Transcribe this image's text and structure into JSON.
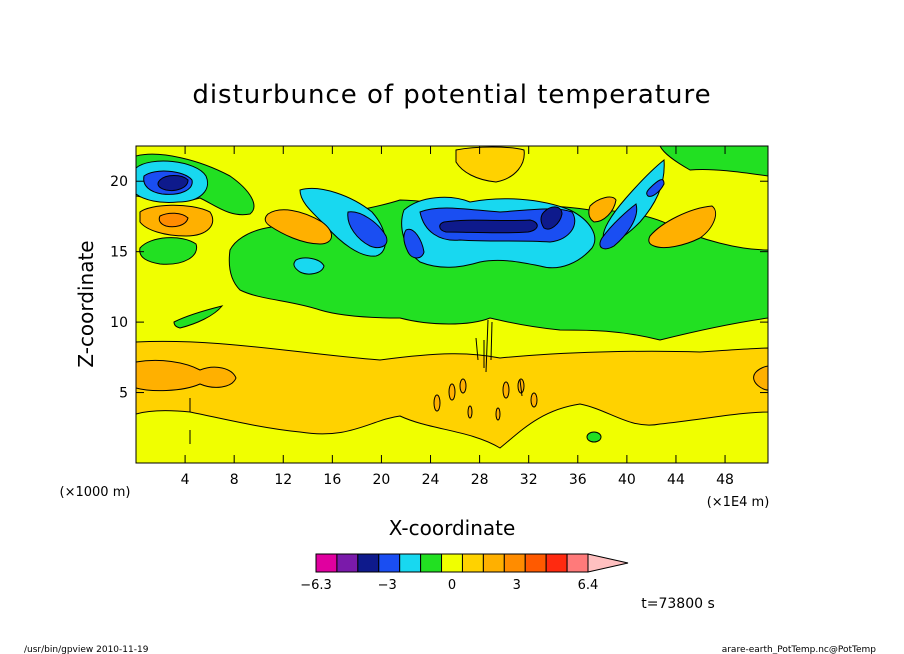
{
  "chart_data": {
    "type": "heatmap",
    "subtype": "filled-contour",
    "title": "disturbunce of potential temperature",
    "xlabel": "X-coordinate",
    "ylabel": "Z-coordinate",
    "x_unit": "(×1E4 m)",
    "y_unit": "(×1000 m)",
    "xlim": [
      0,
      51.5
    ],
    "ylim": [
      0,
      22.5
    ],
    "x_ticks": [
      4,
      8,
      12,
      16,
      20,
      24,
      28,
      32,
      36,
      40,
      44,
      48
    ],
    "y_ticks": [
      5,
      10,
      15,
      20
    ],
    "time_label": "t=73800 s",
    "colorbar": {
      "levels": [
        -6.3,
        -5.4,
        -4.5,
        -3.6,
        -2.7,
        -1.8,
        -0.9,
        0,
        0.9,
        1.8,
        2.7,
        3.6,
        4.5,
        5.4,
        6.3
      ],
      "tick_labels": [
        "−6.3",
        "−3",
        "0",
        "3",
        "6.4"
      ],
      "colors": [
        "#e0009f",
        "#7a1aaa",
        "#0e1a8c",
        "#1a4ef2",
        "#18d8f0",
        "#22e022",
        "#f0ff00",
        "#ffd200",
        "#ffb000",
        "#ff8c00",
        "#ff5a00",
        "#ff2a10",
        "#ff7a7a",
        "#ffc0c0"
      ],
      "extend": "max"
    },
    "background_level_color": "#f0ff00",
    "regions": [
      {
        "name": "lower warm band",
        "sign": "positive",
        "x_range": [
          0,
          51.5
        ],
        "z_range": [
          2,
          8.5
        ],
        "value": 2
      },
      {
        "name": "upper neutral band",
        "sign": "zero",
        "x_range": [
          0,
          51.5
        ],
        "z_range": [
          8.5,
          12
        ],
        "value": 0.5
      },
      {
        "name": "central cold lobes",
        "sign": "negative",
        "x_range": [
          22,
          36
        ],
        "z_range": [
          14,
          19
        ],
        "value": -4
      },
      {
        "name": "upper-left cold core",
        "sign": "negative",
        "x_range": [
          0,
          6
        ],
        "z_range": [
          19,
          21.5
        ],
        "value": -3
      },
      {
        "name": "upper-left warm core",
        "sign": "positive",
        "x_range": [
          0,
          7
        ],
        "z_range": [
          16,
          19
        ],
        "value": 3
      }
    ]
  },
  "footer": {
    "left": "/usr/bin/gpview   2010-11-19",
    "right": "arare-earth_PotTemp.nc@PotTemp"
  }
}
